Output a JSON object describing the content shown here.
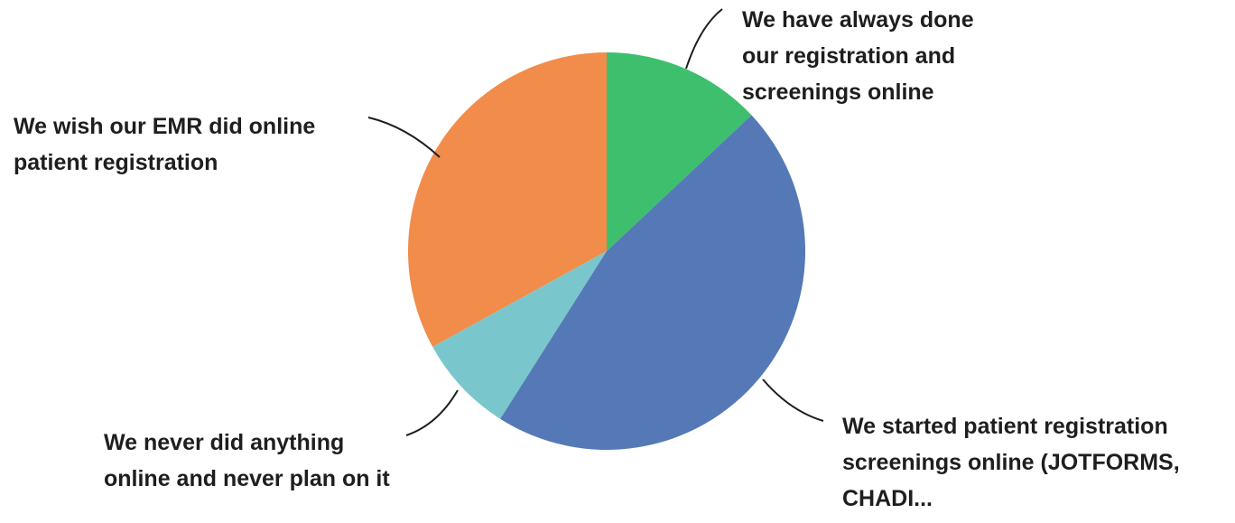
{
  "chart_data": {
    "type": "pie",
    "categories": [
      "We have always done our registration and screenings online",
      "We started patient registration screenings online (JOTFORMS, CHADI...",
      "We never did anything online and never plan on it",
      "We wish our EMR did online patient registration"
    ],
    "values": [
      13,
      46,
      8,
      33
    ],
    "colors": [
      "#3dbf6e",
      "#5479b6",
      "#79c7cc",
      "#f28c4a"
    ]
  }
}
